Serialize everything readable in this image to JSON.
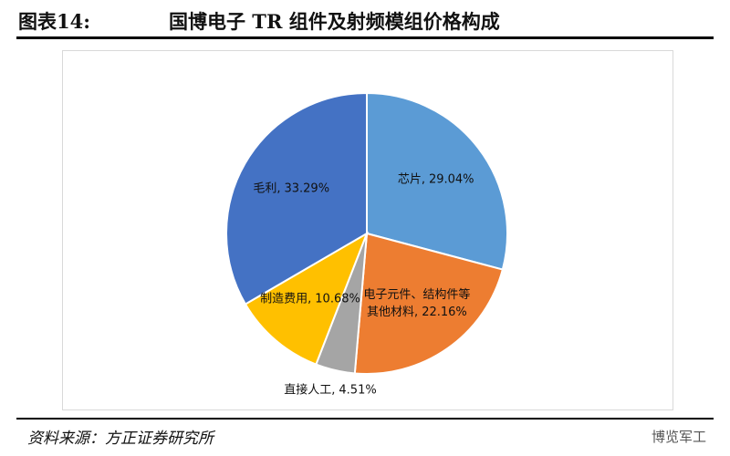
{
  "figure_number": "图表14:",
  "source": "资料来源：方正证券研究所",
  "watermark": "博览军工",
  "chart_data": {
    "type": "pie",
    "title": "国博电子 TR 组件及射频模组价格构成",
    "categories": [
      "芯片,",
      "电子元件、结构件等其他材料,",
      "直接人工,",
      "制造费用,",
      "毛利,"
    ],
    "values": [
      29.04,
      22.16,
      4.51,
      10.68,
      33.29
    ],
    "value_labels": [
      "29.04%",
      "22.16%",
      "4.51%",
      "10.68%",
      "33.29%"
    ],
    "colors": [
      "#5b9bd5",
      "#ed7d31",
      "#a5a5a5",
      "#ffc000",
      "#4472c4"
    ]
  }
}
